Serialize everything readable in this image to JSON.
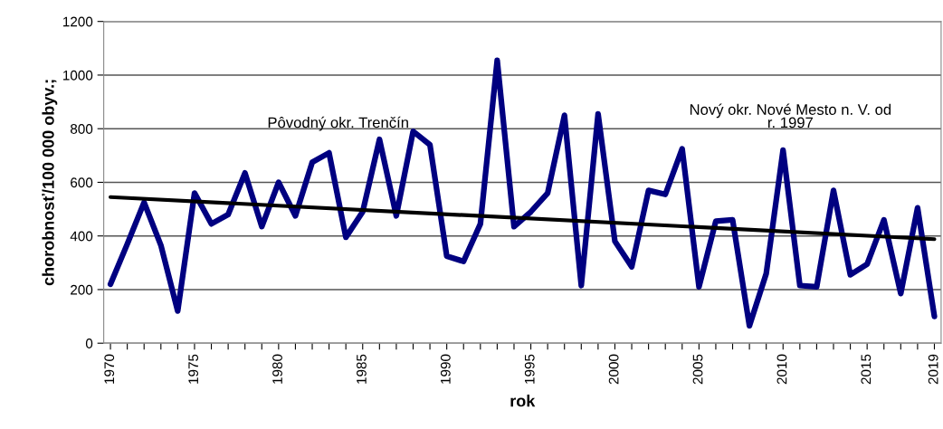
{
  "chart_data": {
    "type": "line",
    "xlabel": "rok",
    "ylabel": "chorobnosť/100 000 obyv.;",
    "x": [
      1970,
      1971,
      1972,
      1973,
      1974,
      1975,
      1976,
      1977,
      1978,
      1979,
      1980,
      1981,
      1982,
      1983,
      1984,
      1985,
      1986,
      1987,
      1988,
      1989,
      1990,
      1991,
      1992,
      1993,
      1994,
      1995,
      1996,
      1997,
      1998,
      1999,
      2000,
      2001,
      2002,
      2003,
      2004,
      2005,
      2006,
      2007,
      2008,
      2009,
      2010,
      2011,
      2012,
      2013,
      2014,
      2015,
      2016,
      2017,
      2018,
      2019
    ],
    "series": [
      {
        "color": "#000080",
        "values": [
          220,
          370,
          525,
          365,
          120,
          560,
          445,
          480,
          635,
          435,
          600,
          475,
          675,
          710,
          395,
          490,
          760,
          475,
          790,
          740,
          325,
          305,
          445,
          1055,
          435,
          490,
          560,
          850,
          215,
          855,
          380,
          285,
          570,
          555,
          725,
          210,
          455,
          460,
          65,
          260,
          720,
          215,
          210,
          570,
          255,
          295,
          460,
          185,
          505,
          100
        ]
      },
      {
        "type": "line",
        "color": "#000000",
        "x": [
          1970,
          2019
        ],
        "values": [
          545,
          388
        ]
      }
    ],
    "annotations": [
      "Pôvodný okr. Trenčín",
      "Nový okr. Nové Mesto n. V. od r. 1997"
    ],
    "xlim": [
      1969.6,
      2019.4
    ],
    "xticks": [
      1970,
      {
        "value": 1971,
        "label": null
      },
      {
        "value": 1972,
        "label": null
      },
      {
        "value": 1973,
        "label": null
      },
      {
        "value": 1974,
        "label": null
      },
      1975,
      {
        "value": 1976,
        "label": null
      },
      {
        "value": 1977,
        "label": null
      },
      {
        "value": 1978,
        "label": null
      },
      {
        "value": 1979,
        "label": null
      },
      1980,
      {
        "value": 1981,
        "label": null
      },
      {
        "value": 1982,
        "label": null
      },
      {
        "value": 1983,
        "label": null
      },
      {
        "value": 1984,
        "label": null
      },
      1985,
      {
        "value": 1986,
        "label": null
      },
      {
        "value": 1987,
        "label": null
      },
      {
        "value": 1988,
        "label": null
      },
      {
        "value": 1989,
        "label": null
      },
      1990,
      {
        "value": 1991,
        "label": null
      },
      {
        "value": 1992,
        "label": null
      },
      {
        "value": 1993,
        "label": null
      },
      {
        "value": 1994,
        "label": null
      },
      1995,
      {
        "value": 1996,
        "label": null
      },
      {
        "value": 1997,
        "label": null
      },
      {
        "value": 1998,
        "label": null
      },
      {
        "value": 1999,
        "label": null
      },
      2000,
      {
        "value": 2001,
        "label": null
      },
      {
        "value": 2002,
        "label": null
      },
      {
        "value": 2003,
        "label": null
      },
      {
        "value": 2004,
        "label": null
      },
      2005,
      {
        "value": 2006,
        "label": null
      },
      {
        "value": 2007,
        "label": null
      },
      {
        "value": 2008,
        "label": null
      },
      {
        "value": 2009,
        "label": null
      },
      2010,
      {
        "value": 2011,
        "label": null
      },
      {
        "value": 2012,
        "label": null
      },
      {
        "value": 2013,
        "label": null
      },
      {
        "value": 2014,
        "label": null
      },
      2015,
      {
        "value": 2016,
        "label": null
      },
      {
        "value": 2017,
        "label": null
      },
      {
        "value": 2018,
        "label": null
      },
      2019
    ],
    "ylim": [
      0,
      1200
    ],
    "yticks": [
      0,
      200,
      400,
      600,
      800,
      1000,
      1200
    ],
    "grid": "y",
    "legend": false,
    "marker": "none",
    "line_style": "solid"
  }
}
